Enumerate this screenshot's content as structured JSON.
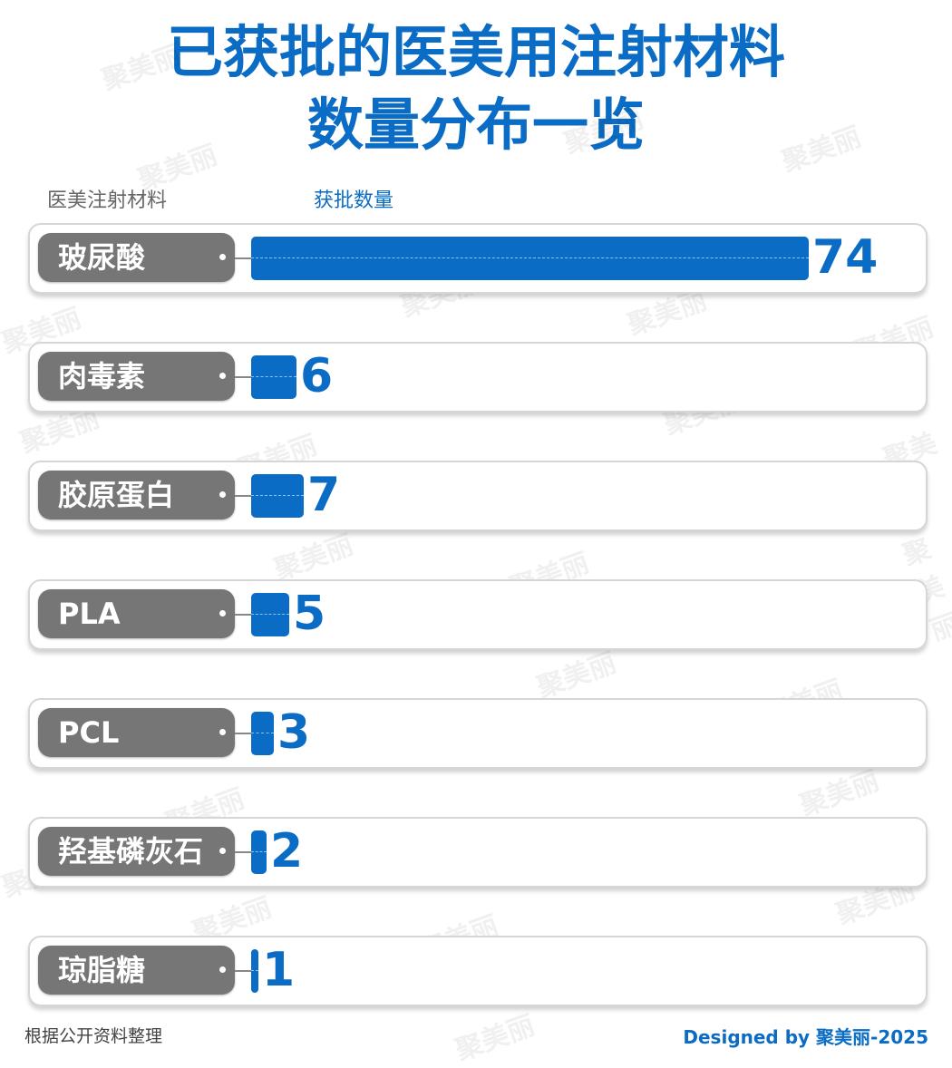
{
  "title_line1": "已获批的医美用注射材料",
  "title_line2": "数量分布一览",
  "watermark": "聚美丽",
  "chart_data": {
    "type": "bar",
    "orientation": "horizontal",
    "title": "已获批的医美用注射材料数量分布一览",
    "category_header": "医美注射材料",
    "value_header": "获批数量",
    "categories": [
      "玻尿酸",
      "肉毒素",
      "胶原蛋白",
      "PLA",
      "PCL",
      "羟基磷灰石",
      "琼脂糖"
    ],
    "values": [
      74,
      6,
      7,
      5,
      3,
      2,
      1
    ],
    "bar_color": "#0a6cc4",
    "label_color": "#767676"
  },
  "footer": {
    "source": "根据公开资料整理",
    "credit": "Designed by 聚美丽-2025"
  }
}
